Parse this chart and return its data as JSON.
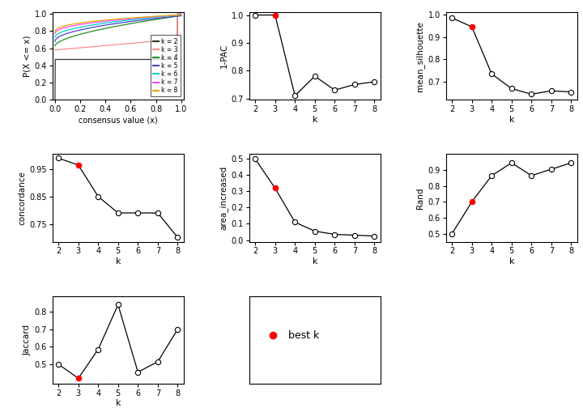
{
  "k_values": [
    2,
    3,
    4,
    5,
    6,
    7,
    8
  ],
  "one_pac": [
    1.0,
    1.0,
    0.71,
    0.78,
    0.73,
    0.75,
    0.76
  ],
  "mean_silhouette": [
    0.985,
    0.945,
    0.735,
    0.67,
    0.645,
    0.66,
    0.655
  ],
  "concordance": [
    0.99,
    0.965,
    0.85,
    0.79,
    0.79,
    0.79,
    0.7
  ],
  "area_increased": [
    0.5,
    0.32,
    0.11,
    0.055,
    0.035,
    0.03,
    0.025
  ],
  "rand": [
    0.5,
    0.7,
    0.865,
    0.945,
    0.865,
    0.905,
    0.945
  ],
  "jaccard": [
    0.5,
    0.42,
    0.585,
    0.84,
    0.455,
    0.515,
    0.7
  ],
  "best_k_one_pac": 3,
  "best_k_mean_silhouette": 3,
  "best_k_concordance": 3,
  "best_k_area_increased": 3,
  "best_k_rand": 3,
  "best_k_jaccard": 3,
  "cdf_colors": [
    "#333333",
    "#FF8888",
    "#228B22",
    "#4444CC",
    "#00CCCC",
    "#FF44FF",
    "#DDAA00"
  ],
  "cdf_labels": [
    "k = 2",
    "k = 3",
    "k = 4",
    "k = 5",
    "k = 6",
    "k = 7",
    "k = 8"
  ],
  "background": "white"
}
